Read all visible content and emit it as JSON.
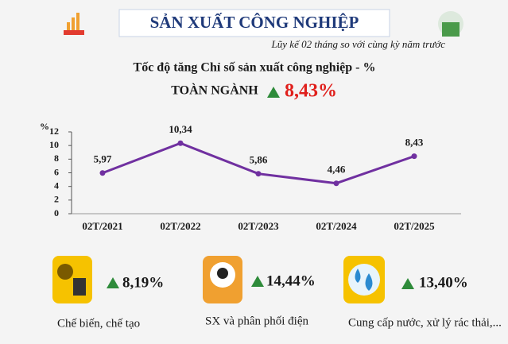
{
  "header": {
    "title": "SẢN XUẤT CÔNG NGHIỆP",
    "subtitle": "Lũy kế 02 tháng so với cùng kỳ năm trước"
  },
  "chart_data": {
    "type": "line",
    "title": "Tốc độ tăng Chỉ số sản xuất công nghiệp - %",
    "y_axis_label": "%",
    "categories": [
      "02T/2021",
      "02T/2022",
      "02T/2023",
      "02T/2024",
      "02T/2025"
    ],
    "values": [
      5.97,
      10.34,
      5.86,
      4.46,
      8.43
    ],
    "value_labels": [
      "5,97",
      "10,34",
      "5,86",
      "4,46",
      "8,43"
    ],
    "color": "#7030a0",
    "ylim": [
      0,
      12
    ],
    "yticks": [
      0,
      2,
      4,
      6,
      8,
      10,
      12
    ],
    "grid": false
  },
  "total": {
    "label": "TOÀN NGÀNH",
    "value": "8,43%"
  },
  "sectors": [
    {
      "value": "8,19%",
      "label": "Chế biến, chế tạo"
    },
    {
      "value": "14,44%",
      "label": "SX và phân phối điện"
    },
    {
      "value": "13,40%",
      "label": "Cung cấp nước, xử lý rác thải,..."
    }
  ]
}
